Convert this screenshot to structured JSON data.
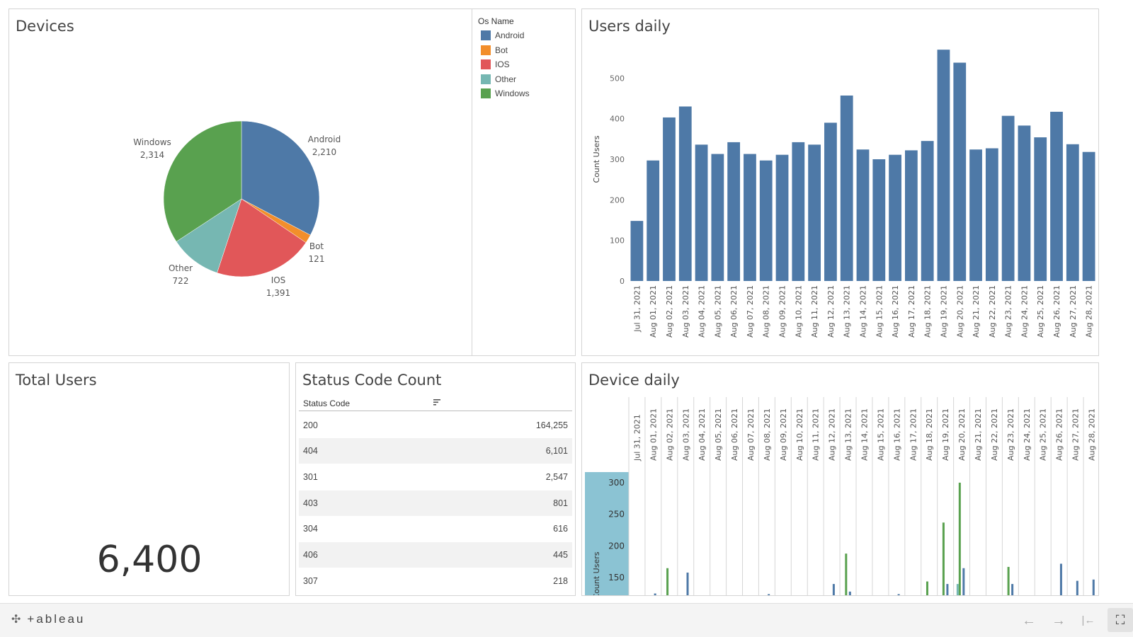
{
  "devices": {
    "title": "Devices",
    "legend_title": "Os Name",
    "legend": [
      {
        "label": "Android",
        "color": "#4e79a7"
      },
      {
        "label": "Bot",
        "color": "#f28e2b"
      },
      {
        "label": "IOS",
        "color": "#e15759"
      },
      {
        "label": "Other",
        "color": "#76b7b2"
      },
      {
        "label": "Windows",
        "color": "#59a14f"
      }
    ],
    "labels": {
      "android_name": "Android",
      "android_value": "2,210",
      "bot_name": "Bot",
      "bot_value": "121",
      "ios_name": "IOS",
      "ios_value": "1,391",
      "other_name": "Other",
      "other_value": "722",
      "windows_name": "Windows",
      "windows_value": "2,314"
    }
  },
  "users_daily": {
    "title": "Users daily"
  },
  "total_users": {
    "title": "Total Users",
    "value": "6,400"
  },
  "status_codes": {
    "title": "Status Code Count",
    "header": "Status Code",
    "rows": [
      {
        "code": "200",
        "count": "164,255"
      },
      {
        "code": "404",
        "count": "6,101"
      },
      {
        "code": "301",
        "count": "2,547"
      },
      {
        "code": "403",
        "count": "801"
      },
      {
        "code": "304",
        "count": "616"
      },
      {
        "code": "406",
        "count": "445"
      },
      {
        "code": "307",
        "count": "218"
      }
    ]
  },
  "device_daily": {
    "title": "Device daily"
  },
  "footer": {
    "logo_text": "+ableau",
    "logo_icon": "tableau-logo-icon",
    "back_icon": "←",
    "forward_icon": "→",
    "reset_icon": "|←",
    "fullscreen_icon": "⛶"
  },
  "chart_data": [
    {
      "type": "pie",
      "title": "Devices",
      "categories": [
        "Android",
        "Bot",
        "IOS",
        "Other",
        "Windows"
      ],
      "values": [
        2210,
        121,
        1391,
        722,
        2314
      ],
      "colors": [
        "#4e79a7",
        "#f28e2b",
        "#e15759",
        "#76b7b2",
        "#59a14f"
      ],
      "legend": "right"
    },
    {
      "type": "bar",
      "title": "Users daily",
      "ylabel": "Count Users",
      "ylim": [
        0,
        600
      ],
      "yticks": [
        0,
        100,
        200,
        300,
        400,
        500
      ],
      "categories": [
        "Jul 31, 2021",
        "Aug 01, 2021",
        "Aug 02, 2021",
        "Aug 03, 2021",
        "Aug 04, 2021",
        "Aug 05, 2021",
        "Aug 06, 2021",
        "Aug 07, 2021",
        "Aug 08, 2021",
        "Aug 09, 2021",
        "Aug 10, 2021",
        "Aug 11, 2021",
        "Aug 12, 2021",
        "Aug 13, 2021",
        "Aug 14, 2021",
        "Aug 15, 2021",
        "Aug 16, 2021",
        "Aug 17, 2021",
        "Aug 18, 2021",
        "Aug 19, 2021",
        "Aug 20, 2021",
        "Aug 21, 2021",
        "Aug 22, 2021",
        "Aug 23, 2021",
        "Aug 24, 2021",
        "Aug 25, 2021",
        "Aug 26, 2021",
        "Aug 27, 2021",
        "Aug 28, 2021"
      ],
      "values": [
        148,
        297,
        403,
        430,
        336,
        313,
        342,
        313,
        297,
        311,
        342,
        336,
        390,
        457,
        324,
        300,
        311,
        322,
        345,
        570,
        538,
        324,
        327,
        407,
        383,
        354,
        417,
        337,
        318
      ],
      "color": "#4e79a7"
    },
    {
      "type": "bar",
      "title": "Device daily",
      "ylabel": "Count Users",
      "yticks": [
        150,
        200,
        250,
        300
      ],
      "ylim": [
        120,
        310
      ],
      "categories": [
        "Jul 31, 2021",
        "Aug 01, 2021",
        "Aug 02, 2021",
        "Aug 03, 2021",
        "Aug 04, 2021",
        "Aug 05, 2021",
        "Aug 06, 2021",
        "Aug 07, 2021",
        "Aug 08, 2021",
        "Aug 09, 2021",
        "Aug 10, 2021",
        "Aug 11, 2021",
        "Aug 12, 2021",
        "Aug 13, 2021",
        "Aug 14, 2021",
        "Aug 15, 2021",
        "Aug 16, 2021",
        "Aug 17, 2021",
        "Aug 18, 2021",
        "Aug 19, 2021",
        "Aug 20, 2021",
        "Aug 21, 2021",
        "Aug 22, 2021",
        "Aug 23, 2021",
        "Aug 24, 2021",
        "Aug 25, 2021",
        "Aug 26, 2021",
        "Aug 27, 2021",
        "Aug 28, 2021"
      ],
      "series": [
        {
          "color": "#4e79a7",
          "values": [
            null,
            125,
            null,
            158,
            null,
            null,
            null,
            null,
            124,
            null,
            null,
            null,
            140,
            128,
            null,
            null,
            124,
            null,
            null,
            140,
            165,
            null,
            null,
            140,
            null,
            null,
            172,
            145,
            147
          ]
        },
        {
          "color": "#59a14f",
          "values": [
            null,
            null,
            165,
            null,
            null,
            null,
            null,
            null,
            null,
            null,
            null,
            null,
            null,
            188,
            null,
            null,
            null,
            null,
            144,
            237,
            300,
            null,
            null,
            167,
            null,
            null,
            null,
            null,
            null
          ]
        },
        {
          "color": "#76b7b2",
          "values": [
            null,
            null,
            null,
            null,
            null,
            null,
            null,
            null,
            null,
            null,
            null,
            null,
            null,
            null,
            null,
            null,
            null,
            null,
            null,
            null,
            140,
            null,
            null,
            null,
            null,
            null,
            null,
            null,
            null
          ]
        }
      ]
    }
  ]
}
